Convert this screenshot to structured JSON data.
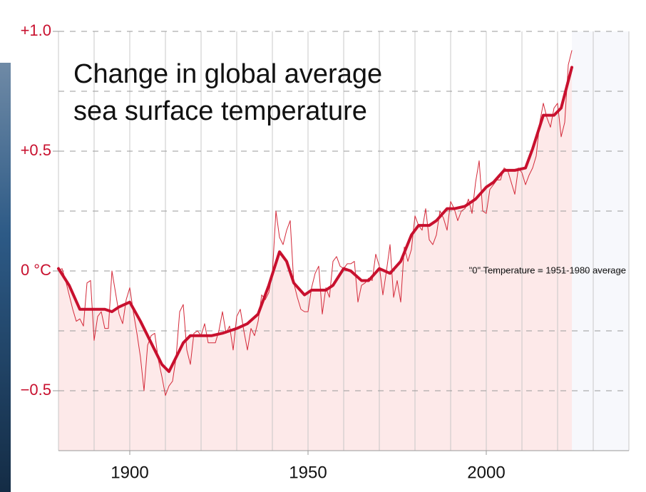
{
  "chart_data": {
    "type": "line",
    "title": "Change in global average sea surface temperature",
    "annotation": "\"0\" Temperature = 1951-1980 average",
    "xlim": [
      1880,
      2040
    ],
    "xticks": [
      1900,
      1950,
      2000
    ],
    "xgrid": [
      1880,
      1890,
      1900,
      1910,
      1920,
      1930,
      1940,
      1950,
      1960,
      1970,
      1980,
      1990,
      2000,
      2010,
      2020,
      2030,
      2040
    ],
    "ylim": [
      -0.75,
      1.0
    ],
    "yticks": [
      {
        "value": 1.0,
        "label": "+1.0"
      },
      {
        "value": 0.5,
        "label": "+0.5"
      },
      {
        "value": 0,
        "label": "0 °C"
      },
      {
        "value": -0.5,
        "label": "−0.5"
      }
    ],
    "ygrid": [
      -0.5,
      -0.25,
      0,
      0.25,
      0.5,
      0.75,
      1.0
    ],
    "area_color": "#fde9e9",
    "series": [
      {
        "color": "#d42a3a",
        "line_width": 1,
        "x": [
          1880,
          1881,
          1882,
          1883,
          1884,
          1885,
          1886,
          1887,
          1888,
          1889,
          1890,
          1891,
          1892,
          1893,
          1894,
          1895,
          1896,
          1897,
          1898,
          1899,
          1900,
          1901,
          1902,
          1903,
          1904,
          1905,
          1906,
          1907,
          1908,
          1909,
          1910,
          1911,
          1912,
          1913,
          1914,
          1915,
          1916,
          1917,
          1918,
          1919,
          1920,
          1921,
          1922,
          1923,
          1924,
          1925,
          1926,
          1927,
          1928,
          1929,
          1930,
          1931,
          1932,
          1933,
          1934,
          1935,
          1936,
          1937,
          1938,
          1939,
          1940,
          1941,
          1942,
          1943,
          1944,
          1945,
          1946,
          1947,
          1948,
          1949,
          1950,
          1951,
          1952,
          1953,
          1954,
          1955,
          1956,
          1957,
          1958,
          1959,
          1960,
          1961,
          1962,
          1963,
          1964,
          1965,
          1966,
          1967,
          1968,
          1969,
          1970,
          1971,
          1972,
          1973,
          1974,
          1975,
          1976,
          1977,
          1978,
          1979,
          1980,
          1981,
          1982,
          1983,
          1984,
          1985,
          1986,
          1987,
          1988,
          1989,
          1990,
          1991,
          1992,
          1993,
          1994,
          1995,
          1996,
          1997,
          1998,
          1999,
          2000,
          2001,
          2002,
          2003,
          2004,
          2005,
          2006,
          2007,
          2008,
          2009,
          2010,
          2011,
          2012,
          2013,
          2014,
          2015,
          2016,
          2017,
          2018,
          2019,
          2020,
          2021,
          2022,
          2023,
          2024
        ],
        "values": [
          0.0,
          0.01,
          -0.04,
          -0.1,
          -0.16,
          -0.21,
          -0.2,
          -0.23,
          -0.05,
          -0.04,
          -0.29,
          -0.19,
          -0.17,
          -0.24,
          -0.24,
          0.0,
          -0.09,
          -0.18,
          -0.22,
          -0.12,
          -0.07,
          -0.17,
          -0.26,
          -0.36,
          -0.5,
          -0.31,
          -0.27,
          -0.26,
          -0.37,
          -0.44,
          -0.52,
          -0.48,
          -0.46,
          -0.36,
          -0.17,
          -0.14,
          -0.33,
          -0.39,
          -0.26,
          -0.25,
          -0.27,
          -0.22,
          -0.3,
          -0.3,
          -0.3,
          -0.25,
          -0.17,
          -0.26,
          -0.23,
          -0.33,
          -0.19,
          -0.16,
          -0.25,
          -0.33,
          -0.24,
          -0.27,
          -0.21,
          -0.1,
          -0.12,
          -0.09,
          -0.01,
          0.25,
          0.14,
          0.11,
          0.17,
          0.21,
          -0.05,
          -0.11,
          -0.16,
          -0.17,
          -0.17,
          -0.07,
          -0.01,
          0.02,
          -0.18,
          -0.07,
          -0.11,
          0.04,
          0.06,
          0.02,
          0.01,
          0.03,
          0.03,
          0.04,
          -0.13,
          -0.06,
          -0.05,
          -0.03,
          -0.04,
          0.07,
          0.02,
          -0.1,
          0.0,
          0.11,
          -0.11,
          -0.04,
          -0.13,
          0.1,
          0.04,
          0.09,
          0.23,
          0.19,
          0.17,
          0.26,
          0.13,
          0.11,
          0.15,
          0.25,
          0.22,
          0.17,
          0.29,
          0.26,
          0.21,
          0.25,
          0.26,
          0.3,
          0.24,
          0.37,
          0.46,
          0.25,
          0.24,
          0.34,
          0.36,
          0.38,
          0.38,
          0.43,
          0.42,
          0.37,
          0.32,
          0.43,
          0.41,
          0.36,
          0.4,
          0.43,
          0.48,
          0.62,
          0.7,
          0.64,
          0.6,
          0.68,
          0.7,
          0.56,
          0.62,
          0.86,
          0.92
        ]
      },
      {
        "color": "#c8102e",
        "line_width": 4,
        "fill": true,
        "x": [
          1880,
          1883,
          1886,
          1890,
          1893,
          1895,
          1897,
          1900,
          1903,
          1906,
          1909,
          1911,
          1913,
          1915,
          1917,
          1920,
          1923,
          1926,
          1930,
          1933,
          1936,
          1939,
          1942,
          1944,
          1946,
          1949,
          1951,
          1955,
          1957,
          1960,
          1962,
          1965,
          1967,
          1970,
          1973,
          1976,
          1979,
          1981,
          1984,
          1986,
          1989,
          1991,
          1994,
          1997,
          2000,
          2002,
          2005,
          2008,
          2011,
          2013,
          2016,
          2019,
          2021,
          2024
        ],
        "values": [
          0.01,
          -0.06,
          -0.16,
          -0.16,
          -0.16,
          -0.17,
          -0.15,
          -0.13,
          -0.21,
          -0.3,
          -0.39,
          -0.42,
          -0.36,
          -0.3,
          -0.27,
          -0.27,
          -0.27,
          -0.26,
          -0.24,
          -0.22,
          -0.18,
          -0.06,
          0.08,
          0.04,
          -0.05,
          -0.1,
          -0.08,
          -0.08,
          -0.06,
          0.01,
          0.0,
          -0.04,
          -0.04,
          0.01,
          -0.01,
          0.04,
          0.15,
          0.19,
          0.19,
          0.21,
          0.26,
          0.26,
          0.27,
          0.3,
          0.35,
          0.37,
          0.42,
          0.42,
          0.43,
          0.51,
          0.65,
          0.65,
          0.68,
          0.85
        ]
      }
    ]
  }
}
